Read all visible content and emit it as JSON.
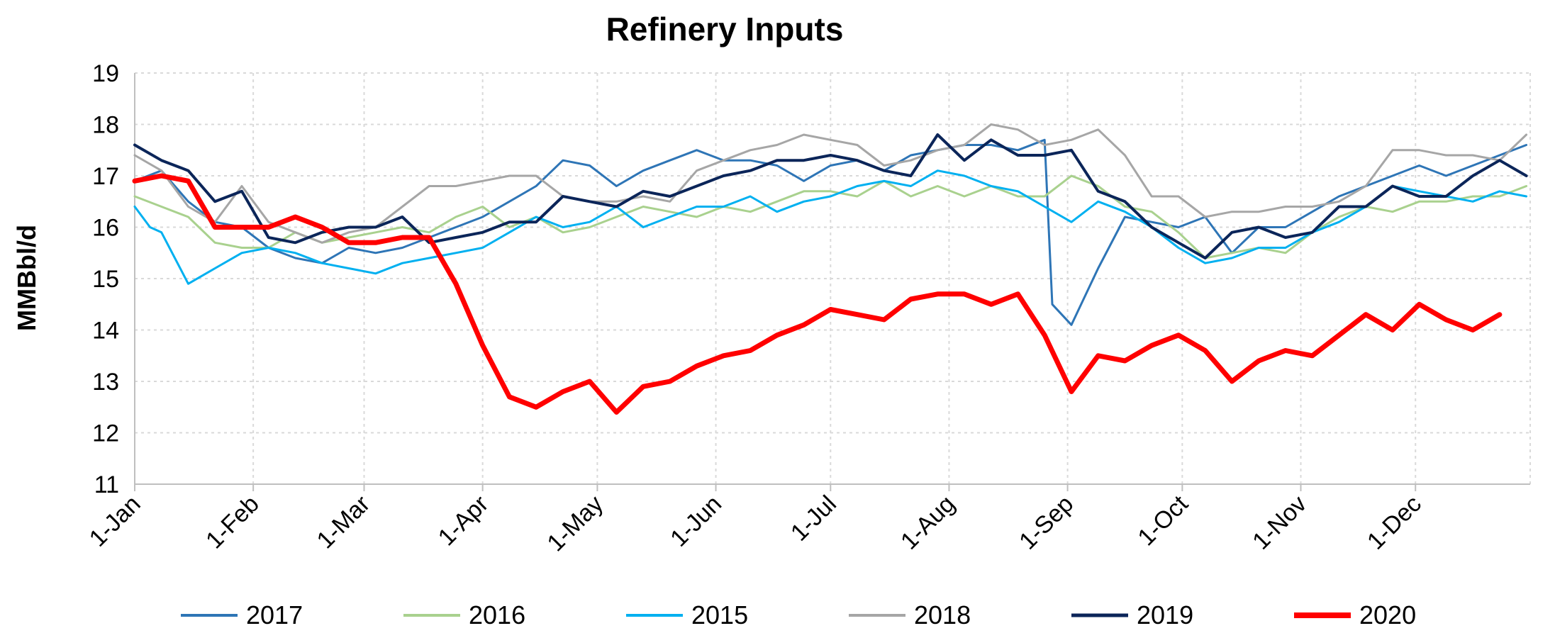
{
  "chart_data": {
    "type": "line",
    "title": "Refinery Inputs",
    "ylabel": "MMBbl/d",
    "xlabel": "",
    "ylim": [
      11,
      19
    ],
    "yticks": [
      "11",
      "12",
      "13",
      "14",
      "15",
      "16",
      "17",
      "18",
      "19"
    ],
    "xlim": [
      1,
      366
    ],
    "xticks": [
      {
        "label": "1-Jan",
        "day": 1
      },
      {
        "label": "1-Feb",
        "day": 32
      },
      {
        "label": "1-Mar",
        "day": 61
      },
      {
        "label": "1-Apr",
        "day": 92
      },
      {
        "label": "1-May",
        "day": 122
      },
      {
        "label": "1-Jun",
        "day": 153
      },
      {
        "label": "1-Jul",
        "day": 183
      },
      {
        "label": "1-Aug",
        "day": 214
      },
      {
        "label": "1-Sep",
        "day": 245
      },
      {
        "label": "1-Oct",
        "day": 275
      },
      {
        "label": "1-Nov",
        "day": 306
      },
      {
        "label": "1-Dec",
        "day": 336
      }
    ],
    "grid": true,
    "legend_position": "bottom",
    "series": [
      {
        "name": "2017",
        "color": "#2e75b6",
        "width": 3,
        "x": [
          1,
          8,
          15,
          22,
          29,
          36,
          43,
          50,
          57,
          64,
          71,
          78,
          85,
          92,
          99,
          106,
          113,
          120,
          127,
          134,
          141,
          148,
          155,
          162,
          169,
          176,
          183,
          190,
          197,
          204,
          211,
          218,
          225,
          232,
          239,
          241,
          246,
          253,
          260,
          267,
          274,
          281,
          288,
          295,
          302,
          309,
          316,
          323,
          330,
          337,
          344,
          351,
          358,
          365
        ],
        "y": [
          16.9,
          17.1,
          16.5,
          16.1,
          16.0,
          15.6,
          15.4,
          15.3,
          15.6,
          15.5,
          15.6,
          15.8,
          16.0,
          16.2,
          16.5,
          16.8,
          17.3,
          17.2,
          16.8,
          17.1,
          17.3,
          17.5,
          17.3,
          17.3,
          17.2,
          16.9,
          17.2,
          17.3,
          17.1,
          17.4,
          17.5,
          17.6,
          17.6,
          17.5,
          17.7,
          14.5,
          14.1,
          15.2,
          16.2,
          16.1,
          16.0,
          16.2,
          15.5,
          16.0,
          16.0,
          16.3,
          16.6,
          16.8,
          17.0,
          17.2,
          17.0,
          17.2,
          17.4,
          17.6
        ]
      },
      {
        "name": "2016",
        "color": "#a9d18e",
        "width": 3,
        "x": [
          1,
          8,
          15,
          22,
          29,
          36,
          43,
          50,
          57,
          64,
          71,
          78,
          85,
          92,
          99,
          106,
          113,
          120,
          127,
          134,
          141,
          148,
          155,
          162,
          169,
          176,
          183,
          190,
          197,
          204,
          211,
          218,
          225,
          232,
          239,
          246,
          253,
          260,
          267,
          274,
          281,
          288,
          295,
          302,
          309,
          316,
          323,
          330,
          337,
          344,
          351,
          358,
          365
        ],
        "y": [
          16.6,
          16.4,
          16.2,
          15.7,
          15.6,
          15.6,
          15.9,
          15.7,
          15.8,
          15.9,
          16.0,
          15.9,
          16.2,
          16.4,
          16.0,
          16.2,
          15.9,
          16.0,
          16.2,
          16.4,
          16.3,
          16.2,
          16.4,
          16.3,
          16.5,
          16.7,
          16.7,
          16.6,
          16.9,
          16.6,
          16.8,
          16.6,
          16.8,
          16.6,
          16.6,
          17.0,
          16.8,
          16.4,
          16.3,
          15.9,
          15.4,
          15.5,
          15.6,
          15.5,
          15.9,
          16.2,
          16.4,
          16.3,
          16.5,
          16.5,
          16.6,
          16.6,
          16.8
        ]
      },
      {
        "name": "2015",
        "color": "#00b0f0",
        "width": 3,
        "x": [
          1,
          5,
          8,
          15,
          22,
          29,
          36,
          43,
          50,
          57,
          64,
          71,
          78,
          85,
          92,
          99,
          106,
          113,
          120,
          127,
          134,
          141,
          148,
          155,
          162,
          169,
          176,
          183,
          190,
          197,
          204,
          211,
          218,
          225,
          232,
          239,
          246,
          253,
          260,
          267,
          274,
          281,
          288,
          295,
          302,
          309,
          316,
          323,
          330,
          337,
          344,
          351,
          358,
          365
        ],
        "y": [
          16.4,
          16.0,
          15.9,
          14.9,
          15.2,
          15.5,
          15.6,
          15.5,
          15.3,
          15.2,
          15.1,
          15.3,
          15.4,
          15.5,
          15.6,
          15.9,
          16.2,
          16.0,
          16.1,
          16.4,
          16.0,
          16.2,
          16.4,
          16.4,
          16.6,
          16.3,
          16.5,
          16.6,
          16.8,
          16.9,
          16.8,
          17.1,
          17.0,
          16.8,
          16.7,
          16.4,
          16.1,
          16.5,
          16.3,
          16.0,
          15.6,
          15.3,
          15.4,
          15.6,
          15.6,
          15.9,
          16.1,
          16.4,
          16.8,
          16.7,
          16.6,
          16.5,
          16.7,
          16.6
        ]
      },
      {
        "name": "2018",
        "color": "#a6a6a6",
        "width": 3,
        "x": [
          1,
          8,
          15,
          22,
          29,
          36,
          43,
          50,
          57,
          64,
          71,
          78,
          85,
          92,
          99,
          106,
          113,
          120,
          127,
          134,
          141,
          148,
          155,
          162,
          169,
          176,
          183,
          190,
          197,
          204,
          211,
          218,
          225,
          232,
          239,
          246,
          253,
          260,
          267,
          274,
          281,
          288,
          295,
          302,
          309,
          316,
          323,
          330,
          337,
          344,
          351,
          358,
          365
        ],
        "y": [
          17.4,
          17.1,
          16.4,
          16.1,
          16.8,
          16.1,
          15.9,
          15.7,
          15.9,
          16.0,
          16.4,
          16.8,
          16.8,
          16.9,
          17.0,
          17.0,
          16.6,
          16.5,
          16.5,
          16.6,
          16.5,
          17.1,
          17.3,
          17.5,
          17.6,
          17.8,
          17.7,
          17.6,
          17.2,
          17.3,
          17.5,
          17.6,
          18.0,
          17.9,
          17.6,
          17.7,
          17.9,
          17.4,
          16.6,
          16.6,
          16.2,
          16.3,
          16.3,
          16.4,
          16.4,
          16.5,
          16.8,
          17.5,
          17.5,
          17.4,
          17.4,
          17.3,
          17.8
        ]
      },
      {
        "name": "2019",
        "color": "#0b2559",
        "width": 4,
        "x": [
          1,
          8,
          15,
          22,
          29,
          36,
          43,
          50,
          57,
          64,
          71,
          78,
          85,
          92,
          99,
          106,
          113,
          120,
          127,
          134,
          141,
          148,
          155,
          162,
          169,
          176,
          183,
          190,
          197,
          204,
          211,
          218,
          225,
          232,
          239,
          246,
          253,
          260,
          267,
          274,
          281,
          288,
          295,
          302,
          309,
          316,
          323,
          330,
          337,
          344,
          351,
          358,
          365
        ],
        "y": [
          17.6,
          17.3,
          17.1,
          16.5,
          16.7,
          15.8,
          15.7,
          15.9,
          16.0,
          16.0,
          16.2,
          15.7,
          15.8,
          15.9,
          16.1,
          16.1,
          16.6,
          16.5,
          16.4,
          16.7,
          16.6,
          16.8,
          17.0,
          17.1,
          17.3,
          17.3,
          17.4,
          17.3,
          17.1,
          17.0,
          17.8,
          17.3,
          17.7,
          17.4,
          17.4,
          17.5,
          16.7,
          16.5,
          16.0,
          15.7,
          15.4,
          15.9,
          16.0,
          15.8,
          15.9,
          16.4,
          16.4,
          16.8,
          16.6,
          16.6,
          17.0,
          17.3,
          17.0
        ]
      },
      {
        "name": "2020",
        "color": "#ff0000",
        "width": 7,
        "x": [
          1,
          8,
          15,
          22,
          29,
          36,
          43,
          50,
          57,
          64,
          71,
          78,
          85,
          92,
          99,
          106,
          113,
          120,
          127,
          134,
          141,
          148,
          155,
          162,
          169,
          176,
          183,
          190,
          197,
          204,
          211,
          218,
          225,
          232,
          239,
          246,
          253,
          260,
          267,
          274,
          281,
          288,
          295,
          302,
          309,
          316,
          323,
          330,
          337,
          344,
          351,
          358
        ],
        "y": [
          16.9,
          17.0,
          16.9,
          16.0,
          16.0,
          16.0,
          16.2,
          16.0,
          15.7,
          15.7,
          15.8,
          15.8,
          14.9,
          13.7,
          12.7,
          12.5,
          12.8,
          13.0,
          12.4,
          12.9,
          13.0,
          13.3,
          13.5,
          13.6,
          13.9,
          14.1,
          14.4,
          14.3,
          14.2,
          14.6,
          14.7,
          14.7,
          14.5,
          14.7,
          13.9,
          12.8,
          13.5,
          13.4,
          13.7,
          13.9,
          13.6,
          13.0,
          13.4,
          13.6,
          13.5,
          13.9,
          14.3,
          14.0,
          14.5,
          14.2,
          14.0,
          14.3
        ]
      }
    ]
  }
}
